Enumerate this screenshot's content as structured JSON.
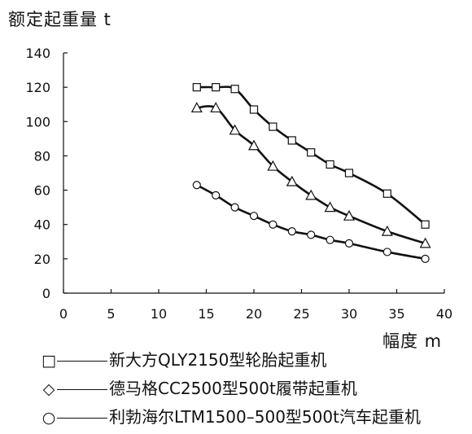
{
  "chart_data": {
    "type": "line",
    "ylabel": "额定起重量 t",
    "xlabel": "幅度 m",
    "xlim": [
      0,
      40
    ],
    "ylim": [
      0,
      140
    ],
    "xticks": [
      "0",
      "5",
      "10",
      "15",
      "20",
      "25",
      "30",
      "35",
      "40"
    ],
    "yticks": [
      "0",
      "20",
      "40",
      "60",
      "80",
      "100",
      "120",
      "140"
    ],
    "grid": false,
    "legend_position": "bottom",
    "series": [
      {
        "name": "新大方QLY2150型轮胎起重机",
        "marker": "square",
        "x": [
          14,
          16,
          18,
          20,
          22,
          24,
          26,
          28,
          30,
          34,
          38
        ],
        "y": [
          120,
          120,
          119,
          107,
          97,
          89,
          82,
          75,
          70,
          58,
          40
        ]
      },
      {
        "name": "德马格CC2500型500t履带起重机",
        "marker": "triangle",
        "x": [
          14,
          16,
          18,
          20,
          22,
          24,
          26,
          28,
          30,
          34,
          38
        ],
        "y": [
          108,
          108,
          95,
          86,
          74,
          65,
          57,
          50,
          45,
          36,
          29
        ]
      },
      {
        "name": "利勃海尔LTM1500-500型500t汽车起重机",
        "marker": "circle",
        "x": [
          14,
          16,
          18,
          20,
          22,
          24,
          26,
          28,
          30,
          34,
          38
        ],
        "y": [
          63,
          57,
          50,
          45,
          40,
          36,
          34,
          31,
          29,
          24,
          20
        ]
      }
    ]
  },
  "legend": [
    {
      "marker": "□",
      "label": "新大方QLY2150型轮胎起重机"
    },
    {
      "marker": "◇",
      "label": "德马格CC2500型500t履带起重机"
    },
    {
      "marker": "○",
      "label": "利勃海尔LTM1500–500型500t汽车起重机"
    }
  ]
}
